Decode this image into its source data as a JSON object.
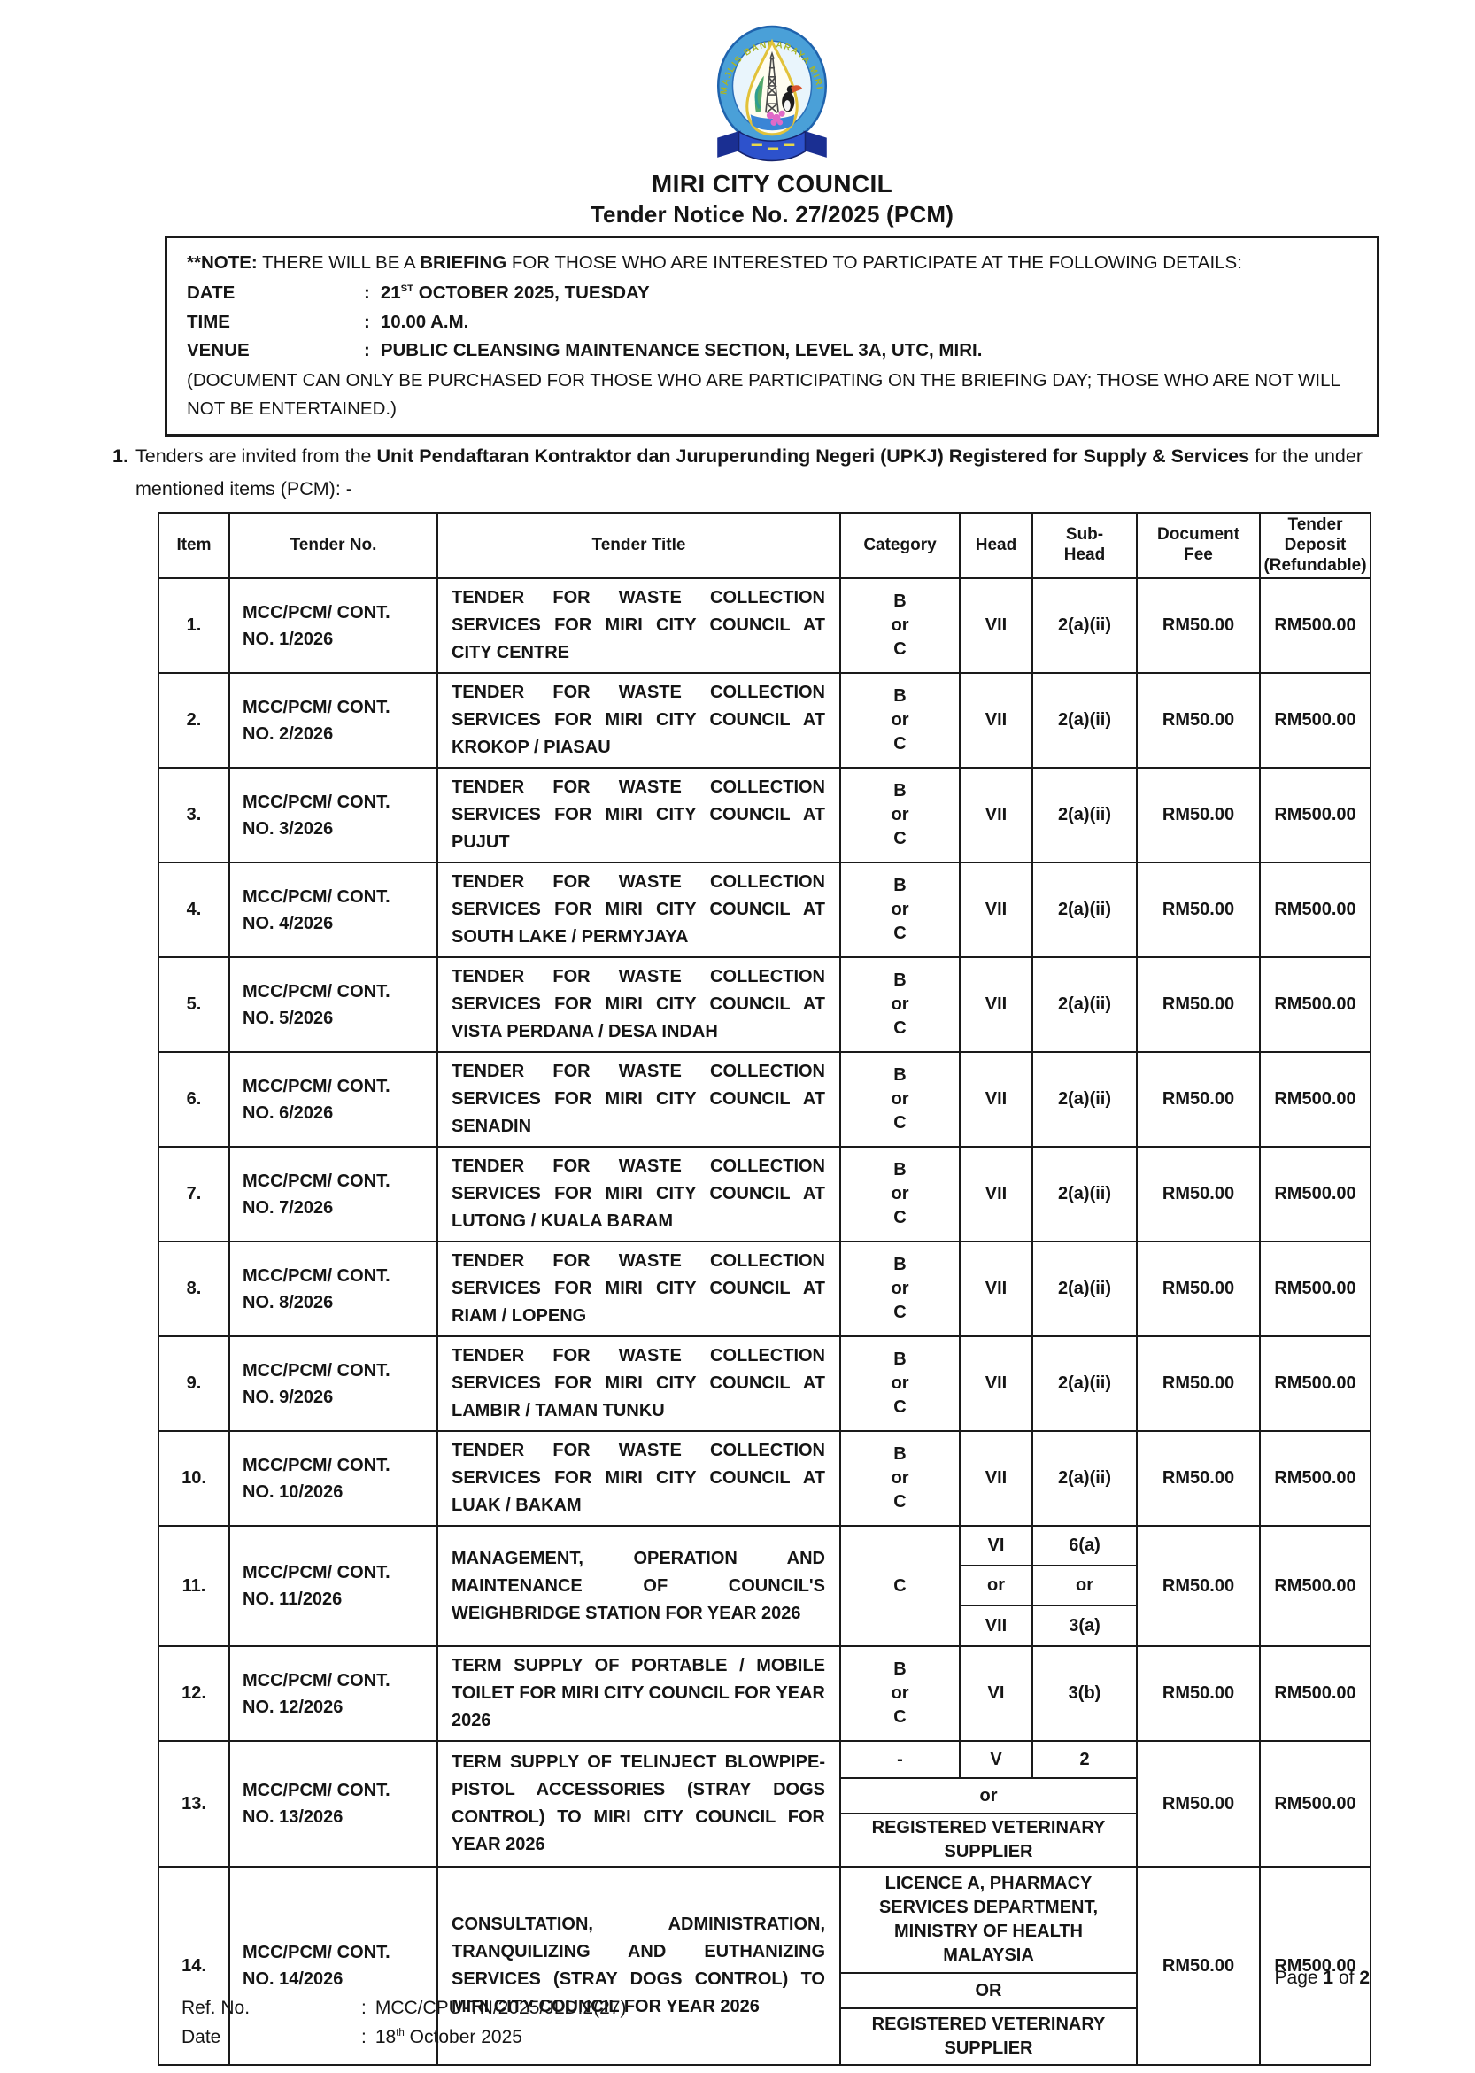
{
  "header": {
    "org_name": "MIRI CITY COUNCIL",
    "notice_title": "Tender Notice No. 27/2025 (PCM)",
    "logo_ring_text": "MAJLIS BANDARAYA MIRI"
  },
  "note": {
    "prefix": "**NOTE:",
    "body_1": "THERE WILL BE A",
    "bold_word": "BRIEFING",
    "body_2": "FOR THOSE WHO ARE INTERESTED TO PARTICIPATE AT THE FOLLOWING DETAILS:",
    "colon": ":",
    "date_label": "DATE",
    "date_day": "21",
    "date_day_suffix": "ST",
    "date_rest": " OCTOBER 2025, TUESDAY",
    "time_label": "TIME",
    "time_value": "10.00 A.M.",
    "venue_label": "VENUE",
    "venue_value": "PUBLIC CLEANSING MAINTENANCE SECTION, LEVEL 3A, UTC, MIRI.",
    "disclaimer": "(DOCUMENT CAN ONLY BE PURCHASED FOR THOSE WHO ARE PARTICIPATING ON THE BRIEFING DAY; THOSE WHO ARE NOT WILL NOT BE ENTERTAINED.)"
  },
  "intro": {
    "number": "1.",
    "text_pre": "Tenders are invited from the",
    "text_bold": "Unit Pendaftaran Kontraktor dan Juruperunding Negeri (UPKJ) Registered for Supply & Services",
    "text_post": "for the under mentioned items (PCM): -"
  },
  "table": {
    "headers": [
      "Item",
      "Tender No.",
      "Tender Title",
      "Category",
      "Head",
      "Sub-\nHead",
      "Document\nFee",
      "Tender Deposit\n(Refundable)"
    ],
    "rows": [
      {
        "type": "simple",
        "item": "1.",
        "tender_no": "MCC/PCM/ CONT.\nNO. 1/2026",
        "title": "TENDER FOR WASTE COLLECTION SERVICES FOR MIRI CITY COUNCIL AT CITY CENTRE",
        "category": "B\nor\nC",
        "head": "VII",
        "subhead": "2(a)(ii)",
        "fee": "RM50.00",
        "deposit": "RM500.00"
      },
      {
        "type": "simple",
        "item": "2.",
        "tender_no": "MCC/PCM/ CONT.\nNO. 2/2026",
        "title": "TENDER FOR WASTE COLLECTION SERVICES FOR MIRI CITY COUNCIL AT KROKOP / PIASAU",
        "category": "B\nor\nC",
        "head": "VII",
        "subhead": "2(a)(ii)",
        "fee": "RM50.00",
        "deposit": "RM500.00"
      },
      {
        "type": "simple",
        "item": "3.",
        "tender_no": "MCC/PCM/ CONT.\nNO. 3/2026",
        "title": "TENDER FOR WASTE COLLECTION SERVICES FOR MIRI CITY COUNCIL AT PUJUT",
        "category": "B\nor\nC",
        "head": "VII",
        "subhead": "2(a)(ii)",
        "fee": "RM50.00",
        "deposit": "RM500.00"
      },
      {
        "type": "simple",
        "item": "4.",
        "tender_no": "MCC/PCM/ CONT.\nNO. 4/2026",
        "title": "TENDER FOR WASTE COLLECTION SERVICES FOR MIRI CITY COUNCIL AT SOUTH LAKE / PERMYJAYA",
        "category": "B\nor\nC",
        "head": "VII",
        "subhead": "2(a)(ii)",
        "fee": "RM50.00",
        "deposit": "RM500.00"
      },
      {
        "type": "simple",
        "item": "5.",
        "tender_no": "MCC/PCM/ CONT.\nNO. 5/2026",
        "title": "TENDER FOR WASTE COLLECTION SERVICES FOR MIRI CITY COUNCIL AT VISTA PERDANA / DESA INDAH",
        "category": "B\nor\nC",
        "head": "VII",
        "subhead": "2(a)(ii)",
        "fee": "RM50.00",
        "deposit": "RM500.00"
      },
      {
        "type": "simple",
        "item": "6.",
        "tender_no": "MCC/PCM/ CONT.\nNO. 6/2026",
        "title": "TENDER FOR WASTE COLLECTION SERVICES FOR MIRI CITY COUNCIL AT SENADIN",
        "category": "B\nor\nC",
        "head": "VII",
        "subhead": "2(a)(ii)",
        "fee": "RM50.00",
        "deposit": "RM500.00"
      },
      {
        "type": "simple",
        "item": "7.",
        "tender_no": "MCC/PCM/ CONT.\nNO. 7/2026",
        "title": "TENDER FOR WASTE COLLECTION SERVICES FOR MIRI CITY COUNCIL AT LUTONG / KUALA BARAM",
        "category": "B\nor\nC",
        "head": "VII",
        "subhead": "2(a)(ii)",
        "fee": "RM50.00",
        "deposit": "RM500.00"
      },
      {
        "type": "simple",
        "item": "8.",
        "tender_no": "MCC/PCM/ CONT.\nNO. 8/2026",
        "title": "TENDER FOR WASTE COLLECTION SERVICES FOR MIRI CITY COUNCIL AT RIAM / LOPENG",
        "category": "B\nor\nC",
        "head": "VII",
        "subhead": "2(a)(ii)",
        "fee": "RM50.00",
        "deposit": "RM500.00"
      },
      {
        "type": "simple",
        "item": "9.",
        "tender_no": "MCC/PCM/ CONT.\nNO. 9/2026",
        "title": "TENDER FOR WASTE COLLECTION SERVICES FOR MIRI CITY COUNCIL AT LAMBIR / TAMAN TUNKU",
        "category": "B\nor\nC",
        "head": "VII",
        "subhead": "2(a)(ii)",
        "fee": "RM50.00",
        "deposit": "RM500.00"
      },
      {
        "type": "simple",
        "item": "10.",
        "tender_no": "MCC/PCM/ CONT.\nNO. 10/2026",
        "title": "TENDER FOR WASTE COLLECTION SERVICES FOR MIRI CITY COUNCIL AT LUAK / BAKAM",
        "category": "B\nor\nC",
        "head": "VII",
        "subhead": "2(a)(ii)",
        "fee": "RM50.00",
        "deposit": "RM500.00"
      },
      {
        "type": "multi_head",
        "item": "11.",
        "tender_no": "MCC/PCM/ CONT.\nNO. 11/2026",
        "title": "MANAGEMENT, OPERATION AND MAINTENANCE OF COUNCIL'S WEIGHBRIDGE STATION FOR YEAR 2026",
        "category": "C",
        "head_pairs": [
          [
            "VI",
            "6(a)"
          ],
          [
            "or",
            "or"
          ],
          [
            "VII",
            "3(a)"
          ]
        ],
        "fee": "RM50.00",
        "deposit": "RM500.00"
      },
      {
        "type": "simple",
        "item": "12.",
        "tender_no": "MCC/PCM/ CONT.\nNO. 12/2026",
        "title": "TERM SUPPLY OF PORTABLE / MOBILE TOILET FOR MIRI CITY COUNCIL FOR YEAR 2026",
        "category": "B\nor\nC",
        "head": "VI",
        "subhead": "3(b)",
        "fee": "RM50.00",
        "deposit": "RM500.00"
      },
      {
        "type": "merged_or",
        "item": "13.",
        "tender_no": "MCC/PCM/ CONT.\nNO. 13/2026",
        "title": "TERM SUPPLY OF TELINJECT BLOWPIPE-PISTOL ACCESSORIES (STRAY DOGS CONTROL) TO MIRI CITY COUNCIL FOR YEAR 2026",
        "first": [
          "-",
          "V",
          "2"
        ],
        "merged": [
          "or",
          "REGISTERED VETERINARY SUPPLIER"
        ],
        "fee": "RM50.00",
        "deposit": "RM500.00"
      },
      {
        "type": "merged_full",
        "item": "14.",
        "tender_no": "MCC/PCM/ CONT.\nNO. 14/2026",
        "title": "CONSULTATION, ADMINISTRATION, TRANQUILIZING AND EUTHANIZING SERVICES (STRAY DOGS CONTROL) TO MIRI CITY COUNCIL FOR YEAR 2026",
        "merged": [
          "LICENCE A, PHARMACY SERVICES DEPARTMENT, MINISTRY OF HEALTH MALAYSIA",
          "OR",
          "REGISTERED VETERINARY SUPPLIER"
        ],
        "fee": "RM50.00",
        "deposit": "RM500.00"
      }
    ]
  },
  "footer": {
    "page_word": "Page",
    "page_current": "1",
    "page_of": "of",
    "page_total": "2",
    "colon": ":",
    "ref_label": "Ref. No.",
    "ref_value": "MCC/CPU-TN/2025/JLD.2(27)",
    "date_label": "Date",
    "date_day": "18",
    "date_day_suffix": "th",
    "date_rest": " October 2025"
  }
}
